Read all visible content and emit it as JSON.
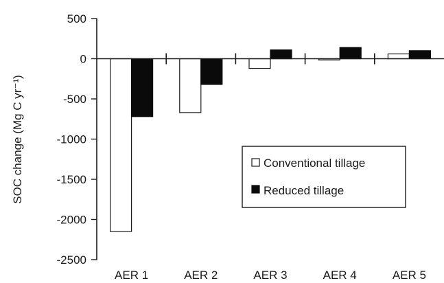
{
  "chart_data": {
    "type": "bar",
    "categories": [
      "AER 1",
      "AER 2",
      "AER 3",
      "AER 4",
      "AER 5"
    ],
    "series": [
      {
        "name": "Conventional tillage",
        "values": [
          -2150,
          -670,
          -120,
          -15,
          60
        ],
        "fill": "#ffffff",
        "stroke": "#1a1a1a"
      },
      {
        "name": "Reduced tillage",
        "values": [
          -720,
          -320,
          110,
          140,
          100
        ],
        "fill": "#0a0a0a",
        "stroke": "#0a0a0a"
      }
    ],
    "ylabel": "SOC change (Mg C yr⁻¹)",
    "ylim": [
      -2500,
      500
    ],
    "yticks": [
      500,
      0,
      -500,
      -1000,
      -1500,
      -2000,
      -2500
    ],
    "grid": false,
    "legend_position": "center-right"
  }
}
